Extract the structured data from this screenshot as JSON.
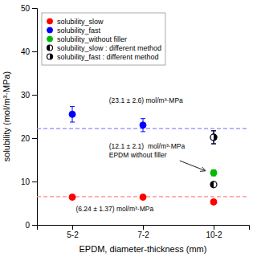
{
  "chart_data": {
    "type": "scatter",
    "xlabel": "EPDM, diameter-thickness (mm)",
    "ylabel": "solubility (mol/m³·MPa)",
    "xlim": [
      0.5,
      3.5
    ],
    "xticks": [
      {
        "value": 1,
        "label": "5-2"
      },
      {
        "value": 2,
        "label": "7-2"
      },
      {
        "value": 3,
        "label": "10-2"
      }
    ],
    "ylim": [
      0,
      50
    ],
    "yticks": [
      0,
      10,
      20,
      30,
      40,
      50
    ],
    "grid": false,
    "legend": "upper-left",
    "series": [
      {
        "name": "solubility_slow",
        "color": "#ff0000",
        "marker": "circle",
        "x": [
          1,
          2,
          3
        ],
        "values": [
          6.4,
          6.4,
          5.3
        ],
        "errors": [
          0.5,
          0.5,
          0.5
        ]
      },
      {
        "name": "solubility_fast",
        "color": "#0000ff",
        "marker": "circle",
        "x": [
          1,
          2,
          3
        ],
        "values": [
          25.5,
          23.0,
          20.2
        ],
        "errors": [
          1.8,
          1.5,
          1.5
        ]
      },
      {
        "name": "solubility_without filler",
        "color": "#00bb00",
        "marker": "circle",
        "x": [
          3
        ],
        "values": [
          12.0
        ],
        "errors": [
          0.7
        ]
      },
      {
        "name": "solubility_slow : different method",
        "color": "#000000",
        "marker": "left-half-circle",
        "x": [
          3
        ],
        "values": [
          9.3
        ],
        "errors": [
          0.5
        ]
      },
      {
        "name": "solubility_fast : different method",
        "color": "#000000",
        "marker": "right-half-circle",
        "x": [
          3
        ],
        "values": [
          20.2
        ],
        "errors": [
          1.5
        ]
      }
    ],
    "reference_lines": [
      {
        "value": 22.2,
        "color": "#8888ff",
        "line_style": "dashed"
      },
      {
        "value": 6.5,
        "color": "#ff8888",
        "line_style": "dashed"
      }
    ],
    "annotations": [
      {
        "text": "(23.1 ± 2.6) mol/m³·MPa",
        "x": 1.52,
        "y": 27.8
      },
      {
        "text": "(6.24 ± 1.37) mol/m³·MPa",
        "x": 1.05,
        "y": 2.8
      },
      {
        "text": "(12.1 ± 2.1)  mol/m³·MPa\nEPDM without filler",
        "x": 1.52,
        "y": 15.2,
        "arrow": {
          "x": [
            2.52,
            2.88
          ],
          "y": [
            14.8,
            12.5
          ]
        }
      }
    ]
  }
}
